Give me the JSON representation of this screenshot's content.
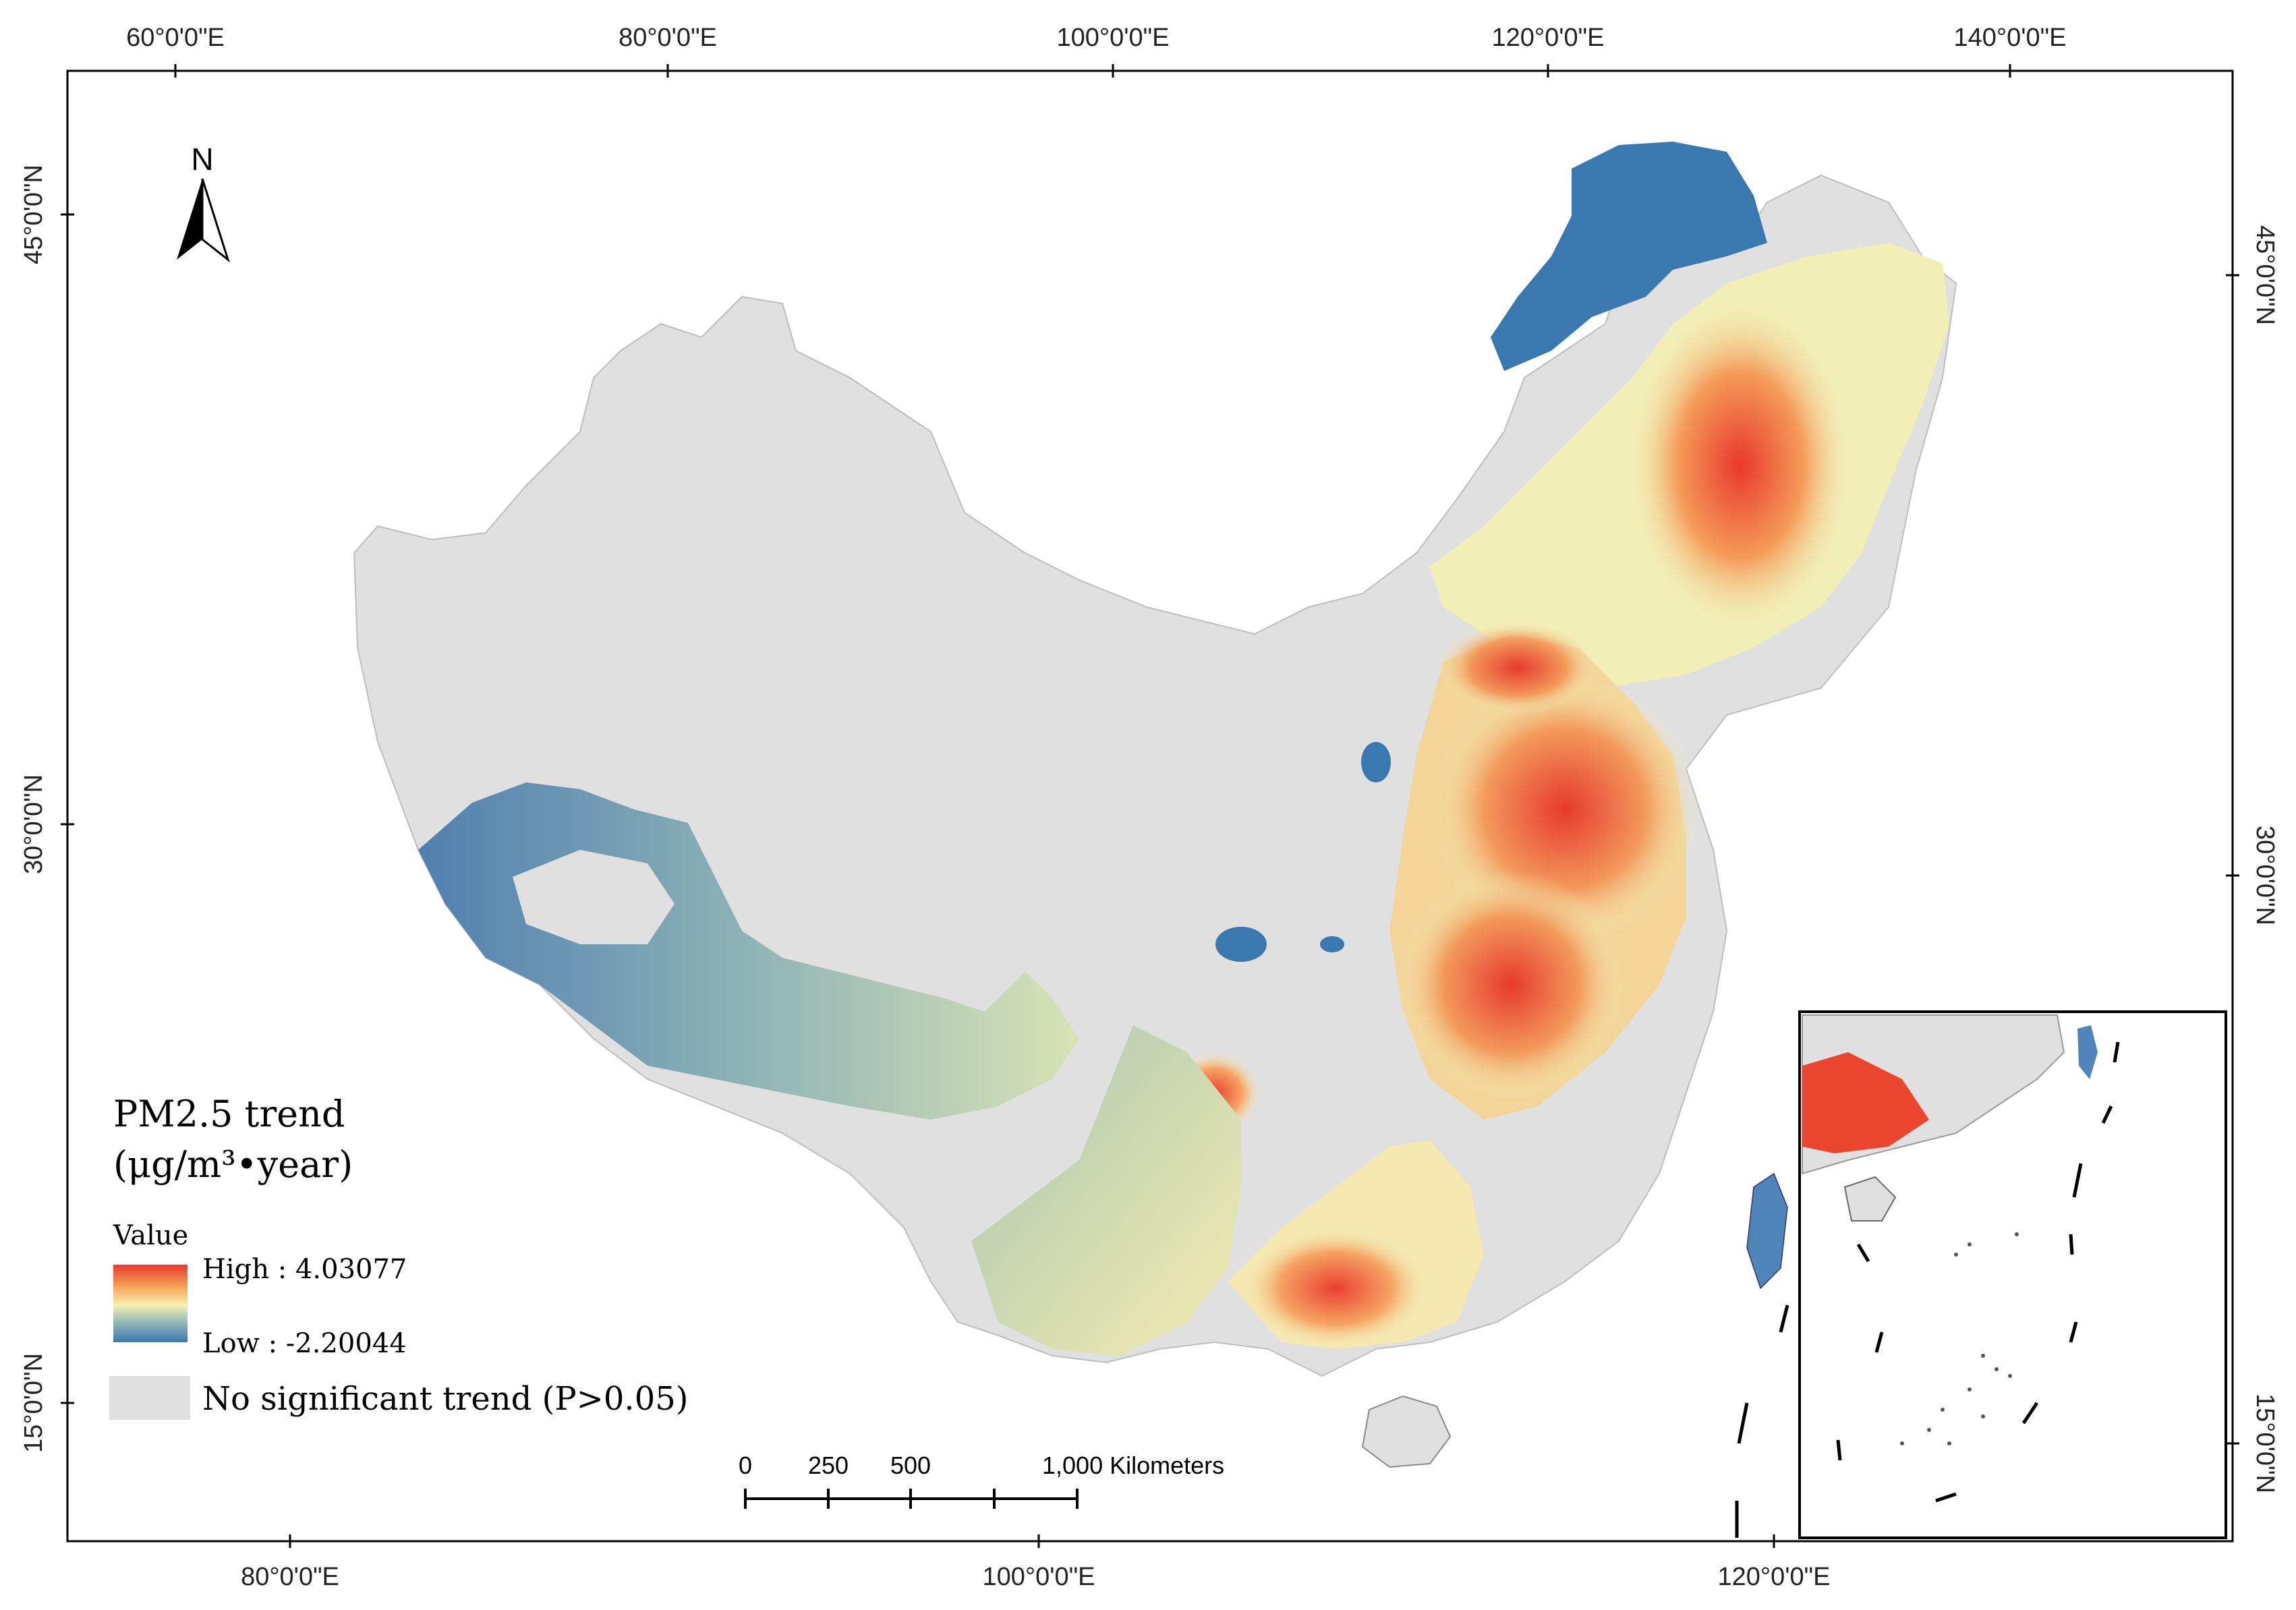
{
  "graticule": {
    "top_labels": [
      "60°0'0\"E",
      "80°0'0\"E",
      "100°0'0\"E",
      "120°0'0\"E",
      "140°0'0\"E"
    ],
    "bottom_labels": [
      "80°0'0\"E",
      "100°0'0\"E",
      "120°0'0\"E"
    ],
    "left_labels": [
      "45°0'0\"N",
      "30°0'0\"N",
      "15°0'0\"N"
    ],
    "right_labels": [
      "45°0'0\"N",
      "30°0'0\"N",
      "15°0'0\"N"
    ]
  },
  "north_arrow": {
    "label": "N"
  },
  "legend": {
    "title_line1": "PM2.5 trend",
    "title_line2": "(μg/m³•year)",
    "value_label": "Value",
    "high_label": "High : 4.03077",
    "low_label": "Low : -2.20044",
    "nosig_label": "No significant trend (P>0.05)",
    "ramp_colors": [
      "#e8392a",
      "#f7a85a",
      "#f6f0b2",
      "#8fb7b8",
      "#3b78b0"
    ],
    "nosig_color": "#e0e0e0"
  },
  "scalebar": {
    "ticks": [
      "0",
      "250",
      "500",
      "1,000 Kilometers"
    ]
  },
  "colors": {
    "land_nosig": "#e0e0e0",
    "trend_high": "#e8392a",
    "trend_mid": "#f4f2b8",
    "trend_low": "#3b78b0",
    "frame": "#000000"
  }
}
